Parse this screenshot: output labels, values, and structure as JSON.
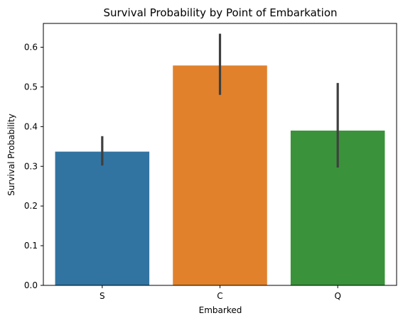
{
  "chart_data": {
    "type": "bar",
    "title": "Survival Probability by Point of Embarkation",
    "xlabel": "Embarked",
    "ylabel": "Survival Probability",
    "categories": [
      "S",
      "C",
      "Q"
    ],
    "values": [
      0.337,
      0.554,
      0.39
    ],
    "error_bars": [
      {
        "low": 0.302,
        "high": 0.376
      },
      {
        "low": 0.48,
        "high": 0.634
      },
      {
        "low": 0.297,
        "high": 0.51
      }
    ],
    "colors": [
      "#3274a1",
      "#e1812c",
      "#3a923a"
    ],
    "error_color": "#3f3f3f",
    "ylim": [
      0,
      0.66
    ],
    "yticks": [
      0.0,
      0.1,
      0.2,
      0.3,
      0.4,
      0.5,
      0.6
    ],
    "ytick_labels": [
      "0.0",
      "0.1",
      "0.2",
      "0.3",
      "0.4",
      "0.5",
      "0.6"
    ],
    "grid": false,
    "legend": "none"
  }
}
